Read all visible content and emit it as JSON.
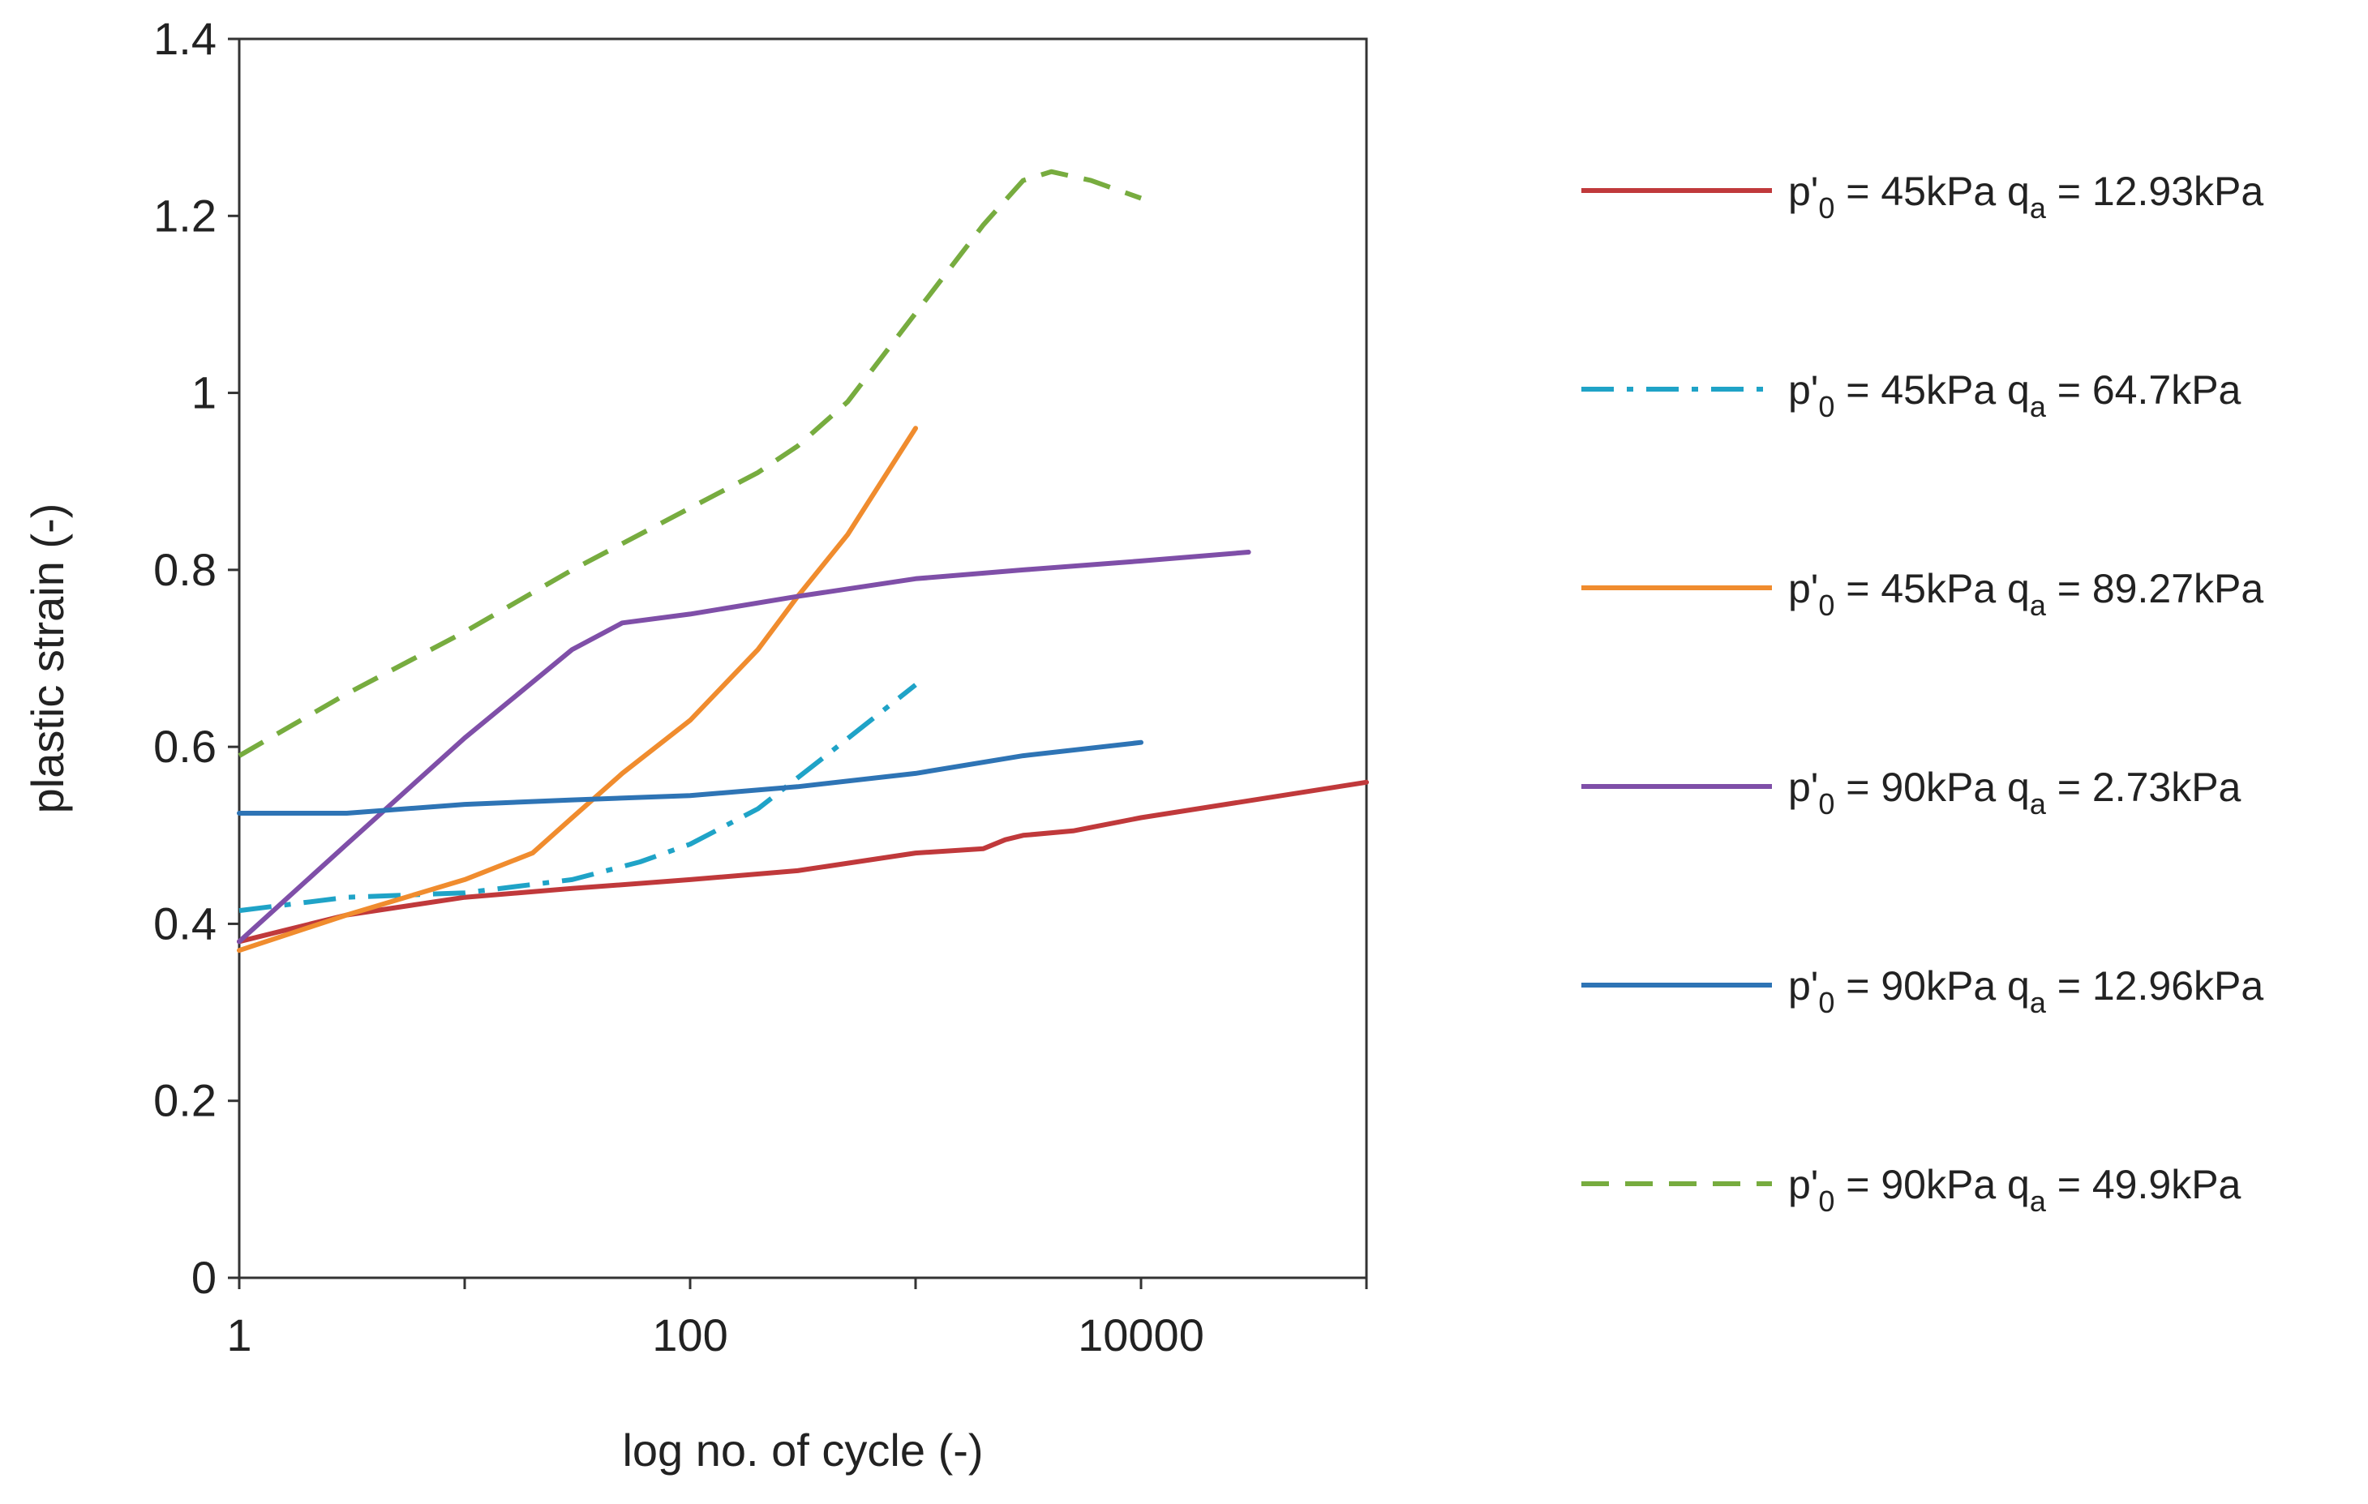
{
  "chart_data": {
    "type": "line",
    "title": "",
    "xlabel": "log no. of cycle (-)",
    "ylabel": "plastic strain (-)",
    "xscale": "log",
    "xlim": [
      1,
      100000
    ],
    "ylim": [
      0,
      1.4
    ],
    "xticks": [
      {
        "value": 1,
        "label": "1"
      },
      {
        "value": 100,
        "label": "100"
      },
      {
        "value": 10000,
        "label": "10000"
      }
    ],
    "yticks": [
      {
        "value": 0,
        "label": "0"
      },
      {
        "value": 0.2,
        "label": "0.2"
      },
      {
        "value": 0.4,
        "label": "0.4"
      },
      {
        "value": 0.6,
        "label": "0.6"
      },
      {
        "value": 0.8,
        "label": "0.8"
      },
      {
        "value": 1,
        "label": "1"
      },
      {
        "value": 1.2,
        "label": "1.2"
      },
      {
        "value": 1.4,
        "label": "1.4"
      }
    ],
    "grid": false,
    "legend_position": "right",
    "series": [
      {
        "name": "p'0 = 45kPa qa = 12.93kPa",
        "legend": {
          "p": "p'",
          "p_sub": "0",
          "mid": " = 45kPa q",
          "q_sub": "a",
          "end": " = 12.93kPa"
        },
        "color": "#C0393B",
        "dash": "solid",
        "x": [
          1,
          3,
          10,
          30,
          100,
          300,
          1000,
          2000,
          2500,
          3000,
          5000,
          10000,
          100000
        ],
        "y": [
          0.38,
          0.41,
          0.43,
          0.44,
          0.45,
          0.46,
          0.48,
          0.485,
          0.495,
          0.5,
          0.505,
          0.52,
          0.56
        ]
      },
      {
        "name": "p'0 = 45kPa qa = 64.7kPa",
        "legend": {
          "p": "p'",
          "p_sub": "0",
          "mid": " = 45kPa q",
          "q_sub": "a",
          "end": " = 64.7kPa"
        },
        "color": "#1FA3C7",
        "dash": "dashdot",
        "x": [
          1,
          3,
          10,
          30,
          60,
          100,
          200,
          400,
          1000
        ],
        "y": [
          0.415,
          0.43,
          0.435,
          0.45,
          0.47,
          0.49,
          0.53,
          0.59,
          0.67
        ]
      },
      {
        "name": "p'0 = 45kPa qa = 89.27kPa",
        "legend": {
          "p": "p'",
          "p_sub": "0",
          "mid": " = 45kPa q",
          "q_sub": "a",
          "end": " = 89.27kPa"
        },
        "color": "#F08C2E",
        "dash": "solid",
        "x": [
          1,
          3,
          10,
          20,
          30,
          50,
          100,
          200,
          300,
          500,
          1000
        ],
        "y": [
          0.37,
          0.41,
          0.45,
          0.48,
          0.52,
          0.57,
          0.63,
          0.71,
          0.77,
          0.84,
          0.96
        ]
      },
      {
        "name": "p'0 = 90kPa qa = 2.73kPa",
        "legend": {
          "p": "p'",
          "p_sub": "0",
          "mid": " = 90kPa q",
          "q_sub": "a",
          "end": " = 2.73kPa"
        },
        "color": "#7F4FA8",
        "dash": "solid",
        "x": [
          1,
          3,
          10,
          30,
          50,
          100,
          300,
          1000,
          3000,
          10000,
          30000
        ],
        "y": [
          0.38,
          0.49,
          0.61,
          0.71,
          0.74,
          0.75,
          0.77,
          0.79,
          0.8,
          0.81,
          0.82
        ]
      },
      {
        "name": "p'0 = 90kPa qa = 12.96kPa",
        "legend": {
          "p": "p'",
          "p_sub": "0",
          "mid": " = 90kPa q",
          "q_sub": "a",
          "end": " = 12.96kPa"
        },
        "color": "#2E74B5",
        "dash": "solid",
        "x": [
          1,
          3,
          10,
          30,
          100,
          300,
          1000,
          3000,
          10000
        ],
        "y": [
          0.525,
          0.525,
          0.535,
          0.54,
          0.545,
          0.555,
          0.57,
          0.59,
          0.605
        ]
      },
      {
        "name": "p'0 = 90kPa qa = 49.9kPa",
        "legend": {
          "p": "p'",
          "p_sub": "0",
          "mid": " = 90kPa q",
          "q_sub": "a",
          "end": " = 49.9kPa"
        },
        "color": "#77AC3F",
        "dash": "dashed",
        "x": [
          1,
          3,
          10,
          30,
          100,
          200,
          300,
          500,
          1000,
          2000,
          3000,
          4000,
          6000,
          10000
        ],
        "y": [
          0.59,
          0.66,
          0.73,
          0.8,
          0.87,
          0.91,
          0.94,
          0.99,
          1.09,
          1.19,
          1.24,
          1.25,
          1.24,
          1.22
        ]
      }
    ]
  }
}
